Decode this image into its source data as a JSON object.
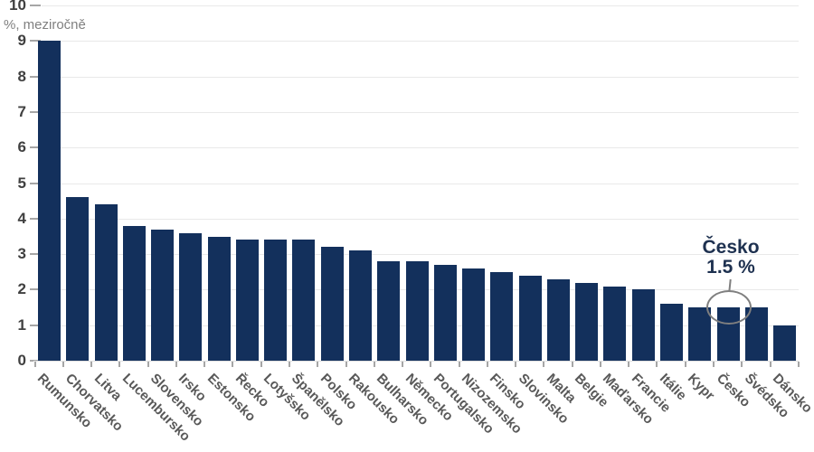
{
  "chart_data": {
    "type": "bar",
    "title": "",
    "xlabel": "",
    "ylabel": "%, meziročně",
    "ylim": [
      0,
      10
    ],
    "yticks": [
      0,
      1,
      2,
      3,
      4,
      5,
      6,
      7,
      8,
      9,
      10
    ],
    "grid": "horizontal",
    "legend": "none",
    "bar_color": "#13305C",
    "grid_color": "#E9E9E9",
    "tick_color": "#A6A6A6",
    "axis_number_color": "#404040",
    "category_label_color": "#595959",
    "unit_label_color": "#808080",
    "annotation_text_color": "#1E3150",
    "annotation_outline_color": "#7F7F7F",
    "categories": [
      "Rumunsko",
      "Chorvatsko",
      "Litva",
      "Lucembursko",
      "Slovensko",
      "Irsko",
      "Estonsko",
      "Řecko",
      "Lotyšsko",
      "Španělsko",
      "Polsko",
      "Rakousko",
      "Bulharsko",
      "Německo",
      "Portugalsko",
      "Nizozemsko",
      "Finsko",
      "Slovinsko",
      "Malta",
      "Belgie",
      "Maďarsko",
      "Francie",
      "Itálie",
      "Kypr",
      "Česko",
      "Švédsko",
      "Dánsko"
    ],
    "values": [
      9.0,
      4.6,
      4.4,
      3.8,
      3.7,
      3.6,
      3.5,
      3.4,
      3.4,
      3.4,
      3.2,
      3.1,
      2.8,
      2.8,
      2.7,
      2.6,
      2.5,
      2.4,
      2.3,
      2.2,
      2.1,
      2.0,
      1.6,
      1.5,
      1.5,
      1.5,
      1.0
    ],
    "annotation": {
      "label": "Česko",
      "value_label": "1.5 %",
      "target_category": "Česko"
    }
  }
}
